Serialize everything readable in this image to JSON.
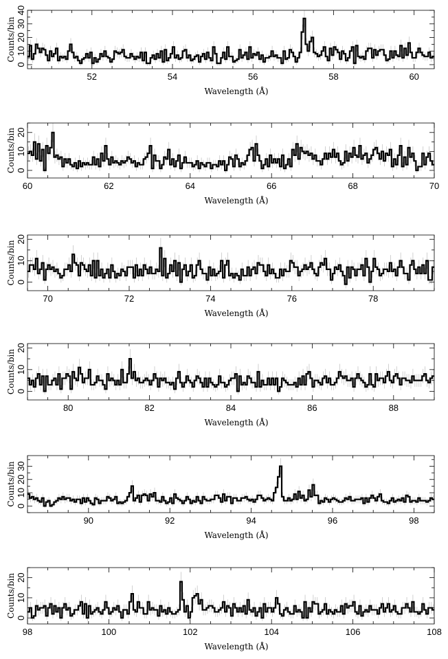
{
  "figure": {
    "xlabel": "Wavelength (Å)",
    "ylabel": "Counts/bin"
  },
  "chart_data": [
    {
      "type": "line",
      "xlabel": "Wavelength (Å)",
      "ylabel": "Counts/bin",
      "xlim": [
        50.4,
        60.5
      ],
      "ylim": [
        -3,
        40
      ],
      "xticks": [
        52,
        54,
        56,
        58,
        60
      ],
      "yticks": [
        0,
        10,
        20,
        30,
        40
      ],
      "bin_width": 0.05,
      "counts": [
        6,
        14,
        4,
        8,
        15,
        12,
        9,
        12,
        11,
        7,
        3,
        10,
        6,
        8,
        12,
        3,
        6,
        5,
        6,
        4,
        10,
        15,
        9,
        5,
        6,
        3,
        1,
        4,
        5,
        8,
        5,
        9,
        1,
        5,
        2,
        4,
        8,
        6,
        10,
        6,
        5,
        2,
        4,
        10,
        9,
        8,
        9,
        11,
        6,
        5,
        5,
        8,
        6,
        4,
        6,
        5,
        9,
        3,
        9,
        1,
        1,
        5,
        7,
        4,
        8,
        5,
        10,
        2,
        11,
        3,
        5,
        8,
        13,
        5,
        7,
        4,
        5,
        10,
        11,
        5,
        7,
        3,
        4,
        6,
        7,
        2,
        6,
        8,
        4,
        9,
        5,
        3,
        13,
        8,
        1,
        1,
        5,
        9,
        4,
        13,
        6,
        6,
        2,
        3,
        4,
        11,
        5,
        7,
        9,
        4,
        13,
        5,
        8,
        7,
        9,
        4,
        7,
        2,
        5,
        5,
        6,
        10,
        6,
        7,
        5,
        5,
        1,
        10,
        4,
        5,
        11,
        9,
        6,
        2,
        5,
        9,
        24,
        34,
        15,
        10,
        17,
        20,
        9,
        8,
        6,
        7,
        10,
        13,
        6,
        3,
        12,
        7,
        13,
        11,
        9,
        4,
        10,
        8,
        3,
        5,
        10,
        13,
        1,
        14,
        6,
        5,
        6,
        4,
        10,
        12,
        12,
        5,
        11,
        7,
        10,
        11,
        11,
        7,
        3,
        4,
        10,
        5,
        10,
        7,
        6,
        14,
        5,
        12,
        7,
        16,
        9,
        5,
        5,
        9,
        12,
        9,
        7,
        6,
        6,
        9,
        5,
        6
      ]
    },
    {
      "type": "line",
      "xlabel": "Wavelength (Å)",
      "ylabel": "Counts/bin",
      "xlim": [
        60,
        70
      ],
      "ylim": [
        -4,
        25
      ],
      "xticks": [
        60,
        62,
        64,
        66,
        68,
        70
      ],
      "yticks": [
        0,
        10,
        20
      ],
      "bin_width": 0.05,
      "counts": [
        9,
        10,
        8,
        15,
        6,
        14,
        5,
        11,
        0,
        13,
        9,
        12,
        20,
        7,
        8,
        6,
        7,
        2,
        6,
        4,
        6,
        3,
        2,
        4,
        1,
        5,
        2,
        4,
        3,
        4,
        3,
        3,
        7,
        3,
        6,
        2,
        9,
        5,
        13,
        6,
        3,
        7,
        4,
        5,
        4,
        3,
        5,
        4,
        5,
        7,
        6,
        4,
        5,
        2,
        4,
        3,
        3,
        6,
        7,
        9,
        13,
        1,
        8,
        5,
        5,
        1,
        3,
        7,
        6,
        11,
        3,
        6,
        2,
        5,
        8,
        1,
        4,
        7,
        4,
        4,
        4,
        2,
        3,
        5,
        1,
        4,
        3,
        2,
        4,
        4,
        1,
        3,
        3,
        2,
        5,
        3,
        5,
        0,
        3,
        7,
        6,
        2,
        8,
        6,
        2,
        4,
        3,
        5,
        8,
        11,
        12,
        5,
        14,
        8,
        5,
        1,
        3,
        6,
        2,
        8,
        4,
        6,
        4,
        6,
        2,
        8,
        1,
        3,
        6,
        2,
        11,
        8,
        14,
        6,
        12,
        10,
        9,
        10,
        8,
        9,
        6,
        8,
        5,
        5,
        3,
        6,
        9,
        6,
        9,
        7,
        11,
        7,
        9,
        5,
        3,
        4,
        10,
        5,
        9,
        7,
        12,
        8,
        7,
        13,
        6,
        8,
        9,
        4,
        6,
        8,
        11,
        12,
        9,
        6,
        10,
        5,
        9,
        8,
        11,
        2,
        6,
        3,
        8,
        13,
        2,
        7,
        3,
        12,
        7,
        9,
        5,
        0,
        2,
        2,
        9,
        3,
        7,
        9,
        5,
        3,
        6
      ]
    },
    {
      "type": "line",
      "xlabel": "Wavelength (Å)",
      "ylabel": "Counts/bin",
      "xlim": [
        69.5,
        79.5
      ],
      "ylim": [
        -4,
        22
      ],
      "xticks": [
        70,
        72,
        74,
        76,
        78
      ],
      "yticks": [
        0,
        10,
        20
      ],
      "bin_width": 0.05,
      "counts": [
        5,
        8,
        8,
        6,
        11,
        4,
        6,
        9,
        1,
        6,
        8,
        6,
        7,
        5,
        6,
        4,
        2,
        3,
        6,
        6,
        8,
        5,
        13,
        9,
        8,
        3,
        9,
        8,
        6,
        5,
        8,
        3,
        10,
        2,
        10,
        3,
        6,
        2,
        4,
        6,
        2,
        8,
        5,
        2,
        4,
        3,
        6,
        5,
        3,
        7,
        7,
        7,
        2,
        8,
        3,
        6,
        3,
        8,
        6,
        4,
        7,
        4,
        4,
        6,
        5,
        16,
        3,
        11,
        2,
        4,
        8,
        5,
        10,
        3,
        9,
        0,
        6,
        8,
        3,
        5,
        8,
        2,
        3,
        8,
        10,
        6,
        4,
        4,
        1,
        7,
        3,
        6,
        3,
        4,
        5,
        10,
        2,
        8,
        10,
        3,
        4,
        2,
        4,
        3,
        1,
        6,
        3,
        3,
        7,
        3,
        6,
        7,
        4,
        9,
        8,
        8,
        5,
        3,
        8,
        4,
        6,
        4,
        2,
        2,
        6,
        3,
        6,
        5,
        5,
        10,
        9,
        7,
        7,
        3,
        5,
        6,
        8,
        6,
        7,
        9,
        6,
        4,
        3,
        7,
        9,
        8,
        11,
        6,
        6,
        1,
        4,
        7,
        6,
        8,
        5,
        3,
        -1,
        7,
        2,
        7,
        6,
        3,
        6,
        6,
        8,
        3,
        11,
        7,
        0,
        5,
        11,
        7,
        6,
        3,
        4,
        6,
        6,
        5,
        9,
        5,
        6,
        3,
        7,
        10,
        7,
        4,
        4,
        1,
        8,
        10,
        6,
        4,
        7,
        4,
        8,
        4,
        10,
        1,
        1,
        7,
        5
      ]
    },
    {
      "type": "line",
      "xlabel": "Wavelength (Å)",
      "ylabel": "Counts/bin",
      "xlim": [
        79,
        89
      ],
      "ylim": [
        -4,
        22
      ],
      "xticks": [
        80,
        82,
        84,
        86,
        88
      ],
      "yticks": [
        0,
        10,
        20
      ],
      "bin_width": 0.05,
      "counts": [
        6,
        3,
        5,
        2,
        6,
        8,
        3,
        7,
        0,
        7,
        3,
        3,
        5,
        6,
        3,
        8,
        1,
        6,
        6,
        8,
        7,
        1,
        9,
        6,
        5,
        11,
        8,
        4,
        6,
        6,
        10,
        3,
        3,
        4,
        7,
        5,
        5,
        3,
        1,
        8,
        5,
        6,
        5,
        3,
        5,
        3,
        10,
        4,
        4,
        8,
        15,
        6,
        9,
        5,
        6,
        4,
        4,
        5,
        6,
        5,
        3,
        5,
        8,
        6,
        2,
        6,
        5,
        6,
        4,
        4,
        3,
        4,
        1,
        6,
        9,
        4,
        2,
        4,
        7,
        5,
        4,
        2,
        5,
        7,
        6,
        4,
        2,
        6,
        2,
        6,
        4,
        3,
        2,
        3,
        7,
        4,
        4,
        2,
        3,
        5,
        6,
        6,
        8,
        0,
        7,
        3,
        4,
        3,
        7,
        6,
        4,
        4,
        2,
        9,
        2,
        5,
        3,
        3,
        6,
        3,
        6,
        3,
        6,
        0,
        2,
        6,
        5,
        4,
        3,
        3,
        3,
        4,
        2,
        6,
        3,
        7,
        3,
        8,
        9,
        6,
        2,
        5,
        5,
        4,
        3,
        6,
        7,
        4,
        6,
        3,
        3,
        4,
        6,
        9,
        7,
        6,
        7,
        5,
        5,
        6,
        2,
        6,
        8,
        6,
        5,
        4,
        2,
        3,
        8,
        3,
        2,
        8,
        5,
        6,
        6,
        4,
        7,
        9,
        5,
        4,
        7,
        8,
        6,
        3,
        6,
        6,
        5,
        5,
        4,
        7,
        5,
        5,
        5,
        5,
        7,
        8,
        5,
        4,
        6,
        7,
        4,
        5
      ]
    },
    {
      "type": "line",
      "xlabel": "Wavelength (Å)",
      "ylabel": "Counts/bin",
      "xlim": [
        88.5,
        98.5
      ],
      "ylim": [
        -5,
        38
      ],
      "xticks": [
        90,
        92,
        94,
        96,
        98
      ],
      "yticks": [
        0,
        10,
        20,
        30
      ],
      "bin_width": 0.05,
      "counts": [
        9,
        6,
        7,
        5,
        6,
        4,
        3,
        6,
        0,
        3,
        4,
        0,
        1,
        3,
        4,
        6,
        5,
        7,
        5,
        6,
        6,
        4,
        5,
        3,
        5,
        5,
        2,
        6,
        3,
        6,
        4,
        2,
        1,
        6,
        5,
        2,
        4,
        4,
        4,
        7,
        6,
        4,
        5,
        7,
        2,
        3,
        2,
        3,
        4,
        7,
        10,
        15,
        4,
        6,
        8,
        3,
        8,
        9,
        8,
        4,
        9,
        7,
        10,
        4,
        4,
        3,
        7,
        4,
        2,
        3,
        6,
        2,
        9,
        6,
        5,
        4,
        2,
        4,
        7,
        5,
        2,
        4,
        3,
        7,
        4,
        2,
        7,
        5,
        4,
        4,
        5,
        5,
        8,
        8,
        6,
        3,
        9,
        4,
        7,
        7,
        2,
        6,
        6,
        4,
        4,
        6,
        6,
        7,
        5,
        4,
        5,
        3,
        5,
        8,
        8,
        6,
        4,
        5,
        6,
        5,
        4,
        10,
        14,
        22,
        30,
        7,
        4,
        4,
        6,
        4,
        5,
        9,
        5,
        11,
        6,
        8,
        4,
        5,
        12,
        7,
        16,
        8,
        8,
        2,
        4,
        3,
        6,
        5,
        3,
        5,
        6,
        5,
        4,
        3,
        3,
        4,
        6,
        5,
        7,
        4,
        4,
        5,
        5,
        5,
        6,
        2,
        6,
        3,
        6,
        8,
        6,
        4,
        7,
        9,
        4,
        3,
        3,
        2,
        4,
        6,
        3,
        4,
        5,
        4,
        6,
        3,
        8,
        7,
        3,
        4,
        4,
        3,
        6,
        4,
        4,
        4,
        3,
        4,
        6,
        5,
        3,
        8
      ]
    },
    {
      "type": "line",
      "xlabel": "Wavelength (Å)",
      "ylabel": "Counts/bin",
      "xlim": [
        98,
        108
      ],
      "ylim": [
        -3,
        25
      ],
      "xticks": [
        98,
        100,
        102,
        104,
        106,
        108
      ],
      "yticks": [
        0,
        10,
        20
      ],
      "bin_width": 0.05,
      "counts": [
        3,
        5,
        0,
        1,
        6,
        4,
        5,
        5,
        6,
        1,
        5,
        7,
        2,
        6,
        3,
        5,
        0,
        5,
        7,
        4,
        5,
        1,
        2,
        4,
        4,
        6,
        8,
        2,
        7,
        0,
        6,
        2,
        3,
        4,
        5,
        3,
        2,
        4,
        8,
        5,
        2,
        3,
        5,
        4,
        6,
        3,
        0,
        4,
        4,
        2,
        8,
        12,
        4,
        3,
        8,
        5,
        5,
        2,
        2,
        8,
        4,
        5,
        4,
        4,
        1,
        6,
        3,
        4,
        2,
        5,
        3,
        2,
        2,
        3,
        4,
        18,
        9,
        3,
        6,
        0,
        3,
        10,
        11,
        12,
        7,
        9,
        4,
        4,
        5,
        6,
        6,
        5,
        3,
        3,
        4,
        5,
        8,
        3,
        6,
        5,
        1,
        7,
        5,
        3,
        5,
        3,
        6,
        2,
        9,
        4,
        3,
        5,
        1,
        3,
        5,
        0,
        7,
        3,
        5,
        5,
        3,
        5,
        10,
        7,
        2,
        1,
        4,
        5,
        3,
        2,
        2,
        6,
        3,
        4,
        3,
        0,
        8,
        0,
        5,
        3,
        8,
        7,
        7,
        2,
        3,
        4,
        7,
        2,
        4,
        3,
        2,
        4,
        3,
        3,
        6,
        2,
        7,
        5,
        6,
        6,
        8,
        3,
        2,
        6,
        1,
        3,
        4,
        3,
        6,
        4,
        4,
        4,
        2,
        5,
        7,
        3,
        5,
        7,
        3,
        4,
        6,
        3,
        2,
        2,
        5,
        5,
        7,
        5,
        3,
        8,
        3,
        3,
        2,
        3,
        7,
        4,
        2,
        5,
        5,
        4,
        9,
        10
      ]
    }
  ]
}
